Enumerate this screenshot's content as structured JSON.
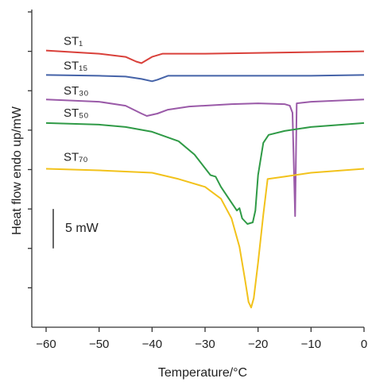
{
  "chart_data": {
    "type": "line",
    "xlabel": "Temperature/°C",
    "ylabel": "Heat flow endo up/mW",
    "xlim": [
      -62.7,
      0
    ],
    "ylim": [
      0,
      40
    ],
    "xticks": [
      {
        "value": -60,
        "label": "−60"
      },
      {
        "value": -50,
        "label": "−50"
      },
      {
        "value": -40,
        "label": "−40"
      },
      {
        "value": -30,
        "label": "−30"
      },
      {
        "value": -20,
        "label": "−20"
      },
      {
        "value": -10,
        "label": "−10"
      },
      0
    ],
    "yticks": [
      5,
      10,
      15,
      20,
      25,
      30,
      35,
      40
    ],
    "scale_bar": {
      "value": 5,
      "label": "5 mW"
    },
    "series": [
      {
        "name": "ST₁",
        "color": "#d9403a",
        "x": [
          -60,
          -50,
          -45,
          -43,
          -42,
          -41,
          -40,
          -38,
          -35,
          -30,
          -20,
          -10,
          0
        ],
        "values": [
          35.1,
          34.7,
          34.3,
          33.7,
          33.5,
          33.9,
          34.3,
          34.7,
          34.7,
          34.7,
          34.8,
          34.9,
          35.0
        ]
      },
      {
        "name": "ST₁₅",
        "color": "#4563a8",
        "x": [
          -60,
          -50,
          -45,
          -42,
          -40,
          -39,
          -37,
          -30,
          -20,
          -10,
          0
        ],
        "values": [
          32.0,
          31.9,
          31.8,
          31.5,
          31.2,
          31.4,
          31.9,
          31.9,
          31.9,
          31.9,
          32.0
        ]
      },
      {
        "name": "ST₃₀",
        "color": "#9a5aa8",
        "x": [
          -60,
          -50,
          -45,
          -42,
          -41,
          -39,
          -37,
          -33,
          -25,
          -20,
          -15,
          -14,
          -13.5,
          -13,
          -12.7,
          -10,
          0
        ],
        "values": [
          28.9,
          28.6,
          28.1,
          27.1,
          26.8,
          27.1,
          27.6,
          28.0,
          28.3,
          28.4,
          28.3,
          28.1,
          27.2,
          14.1,
          28.4,
          28.6,
          28.9
        ]
      },
      {
        "name": "ST₅₀",
        "color": "#2f9a46",
        "x": [
          -60,
          -50,
          -45,
          -40,
          -35,
          -32,
          -29,
          -28,
          -27,
          -25,
          -24,
          -23.5,
          -23,
          -22,
          -21,
          -20.5,
          -20,
          -19,
          -18,
          -15,
          -10,
          0
        ],
        "values": [
          25.9,
          25.7,
          25.4,
          24.8,
          23.6,
          21.9,
          19.3,
          19.1,
          17.8,
          15.8,
          14.8,
          15.1,
          13.8,
          13.1,
          13.3,
          14.8,
          19.3,
          23.4,
          24.4,
          24.9,
          25.4,
          25.9
        ]
      },
      {
        "name": "ST₇₀",
        "color": "#f2c21b",
        "x": [
          -60,
          -50,
          -40,
          -35,
          -30,
          -27,
          -25,
          -23.5,
          -22.5,
          -21.8,
          -21.3,
          -20.8,
          -20,
          -19,
          -18.2,
          -15,
          -10,
          0
        ],
        "values": [
          20.1,
          19.9,
          19.6,
          18.8,
          17.8,
          16.3,
          13.8,
          10.2,
          6.2,
          3.2,
          2.5,
          3.7,
          8.2,
          14.3,
          18.8,
          19.1,
          19.6,
          20.1
        ]
      }
    ]
  }
}
